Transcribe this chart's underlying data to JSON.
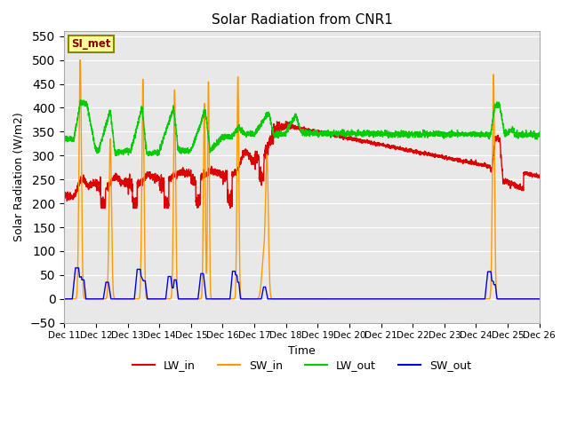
{
  "title": "Solar Radiation from CNR1",
  "xlabel": "Time",
  "ylabel": "Solar Radiation (W/m2)",
  "annotation": "SI_met",
  "ylim": [
    -50,
    560
  ],
  "yticks": [
    -50,
    0,
    50,
    100,
    150,
    200,
    250,
    300,
    350,
    400,
    450,
    500,
    550
  ],
  "bg_color": "#e8e8e8",
  "line_colors": {
    "LW_in": "#dd0000",
    "SW_in": "#ff9900",
    "LW_out": "#00cc00",
    "SW_out": "#0000dd"
  },
  "x_tick_labels": [
    "Dec 11",
    "Dec 12",
    "Dec 13",
    "Dec 14",
    "Dec 15",
    "Dec 16",
    "Dec 17",
    "Dec 18",
    "Dec 19",
    "Dec 20",
    "Dec 21",
    "Dec 22",
    "Dec 23",
    "Dec 24",
    "Dec 25",
    "Dec 26"
  ],
  "x_tick_positions": [
    0,
    1,
    2,
    3,
    4,
    5,
    6,
    7,
    8,
    9,
    10,
    11,
    12,
    13,
    14,
    15
  ]
}
